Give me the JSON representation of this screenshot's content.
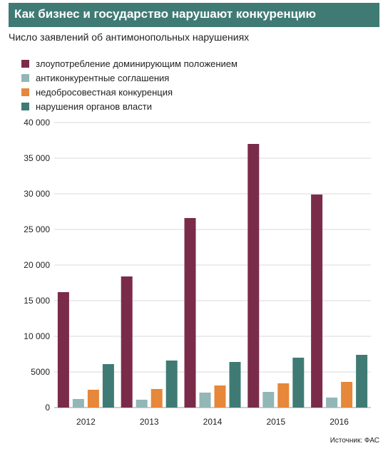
{
  "header": {
    "title": "Как бизнес и государство нарушают конкуренцию",
    "title_bg": "#3f7b74",
    "subtitle": "Число заявлений об антимонопольных нарушениях"
  },
  "source": "Источник: ФАС",
  "chart_data": {
    "type": "bar",
    "title": "Как бизнес и государство нарушают конкуренцию",
    "subtitle": "Число заявлений об антимонопольных нарушениях",
    "categories": [
      "2012",
      "2013",
      "2014",
      "2015",
      "2016"
    ],
    "ylim": [
      0,
      40000
    ],
    "yticks": [
      0,
      5000,
      10000,
      15000,
      20000,
      25000,
      30000,
      35000,
      40000
    ],
    "ytick_labels": [
      "0",
      "5000",
      "10 000",
      "15 000",
      "20 000",
      "25 000",
      "30 000",
      "35 000",
      "40 000"
    ],
    "grid": true,
    "legend_position": "top-left",
    "series": [
      {
        "name": "злоупотребление доминирующим положением",
        "color": "#7b2b4a",
        "values": [
          16200,
          18400,
          26600,
          37000,
          29900
        ]
      },
      {
        "name": "антиконкурентные соглашения",
        "color": "#93b6b7",
        "values": [
          1200,
          1100,
          2100,
          2200,
          1400
        ]
      },
      {
        "name": "недобросовестная конкуренция",
        "color": "#e6873a",
        "values": [
          2500,
          2600,
          3100,
          3400,
          3600
        ]
      },
      {
        "name": "нарушения органов власти",
        "color": "#3f7b74",
        "values": [
          6100,
          6600,
          6400,
          7000,
          7400
        ]
      }
    ]
  }
}
